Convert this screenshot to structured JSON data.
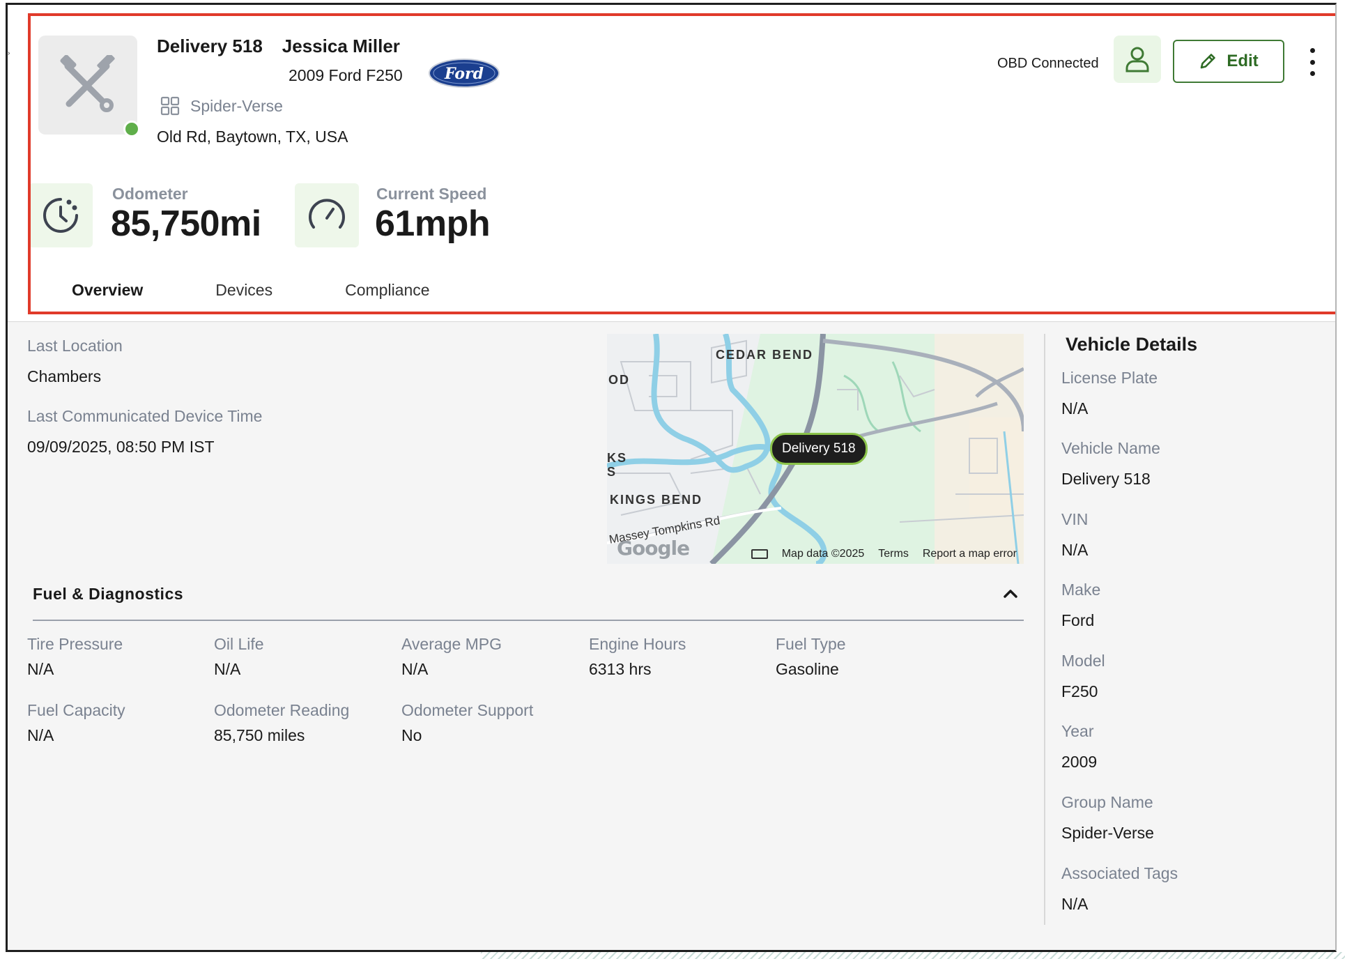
{
  "header": {
    "vehicle_name": "Delivery 518",
    "driver_name": "Jessica Miller",
    "vehicle_model": "2009 Ford F250",
    "brand_logo_text": "Ford",
    "group_name": "Spider-Verse",
    "address": "Old Rd, Baytown, TX, USA",
    "obd_status": "OBD Connected",
    "edit_label": "Edit",
    "status_color": "#5fae4a",
    "accent_color": "#3f7a34"
  },
  "stats": {
    "odometer_label": "Odometer",
    "odometer_value": "85,750mi",
    "speed_label": "Current Speed",
    "speed_value": "61mph"
  },
  "tabs": [
    {
      "label": "Overview",
      "active": true
    },
    {
      "label": "Devices",
      "active": false
    },
    {
      "label": "Compliance",
      "active": false
    }
  ],
  "overview": {
    "last_location_label": "Last Location",
    "last_location_value": "Chambers",
    "last_time_label": "Last Communicated Device Time",
    "last_time_value": "09/09/2025, 08:50 PM IST"
  },
  "map": {
    "pin_label": "Delivery 518",
    "labels": {
      "cedar_bend": "CEDAR BEND",
      "od": "OD",
      "ks": "KS",
      "s": "S",
      "kings_bend": "KINGS BEND",
      "road": "Massey Tompkins Rd"
    },
    "google": "Google",
    "map_data": "Map data ©2025",
    "terms": "Terms",
    "report": "Report a map error"
  },
  "fuel": {
    "title": "Fuel & Diagnostics",
    "items": [
      {
        "label": "Tire Pressure",
        "value": "N/A"
      },
      {
        "label": "Oil Life",
        "value": "N/A"
      },
      {
        "label": "Average MPG",
        "value": "N/A"
      },
      {
        "label": "Engine Hours",
        "value": "6313 hrs"
      },
      {
        "label": "Fuel Type",
        "value": "Gasoline"
      },
      {
        "label": "Fuel Capacity",
        "value": "N/A"
      },
      {
        "label": "Odometer Reading",
        "value": "85,750 miles"
      },
      {
        "label": "Odometer Support",
        "value": "No"
      }
    ]
  },
  "vehicle_details": {
    "title": "Vehicle Details",
    "items": [
      {
        "label": "License Plate",
        "value": "N/A"
      },
      {
        "label": "Vehicle Name",
        "value": "Delivery 518"
      },
      {
        "label": "VIN",
        "value": "N/A"
      },
      {
        "label": "Make",
        "value": "Ford"
      },
      {
        "label": "Model",
        "value": "F250"
      },
      {
        "label": "Year",
        "value": "2009"
      },
      {
        "label": "Group Name",
        "value": "Spider-Verse"
      },
      {
        "label": "Associated Tags",
        "value": "N/A"
      }
    ]
  },
  "icons": {
    "avatar": "tools-icon",
    "group": "grid-icon",
    "driver": "user-icon",
    "edit": "pencil-icon",
    "menu": "kebab-icon",
    "odometer": "clock-icon",
    "speed": "speedometer-icon",
    "collapse": "chevron-up-icon"
  }
}
